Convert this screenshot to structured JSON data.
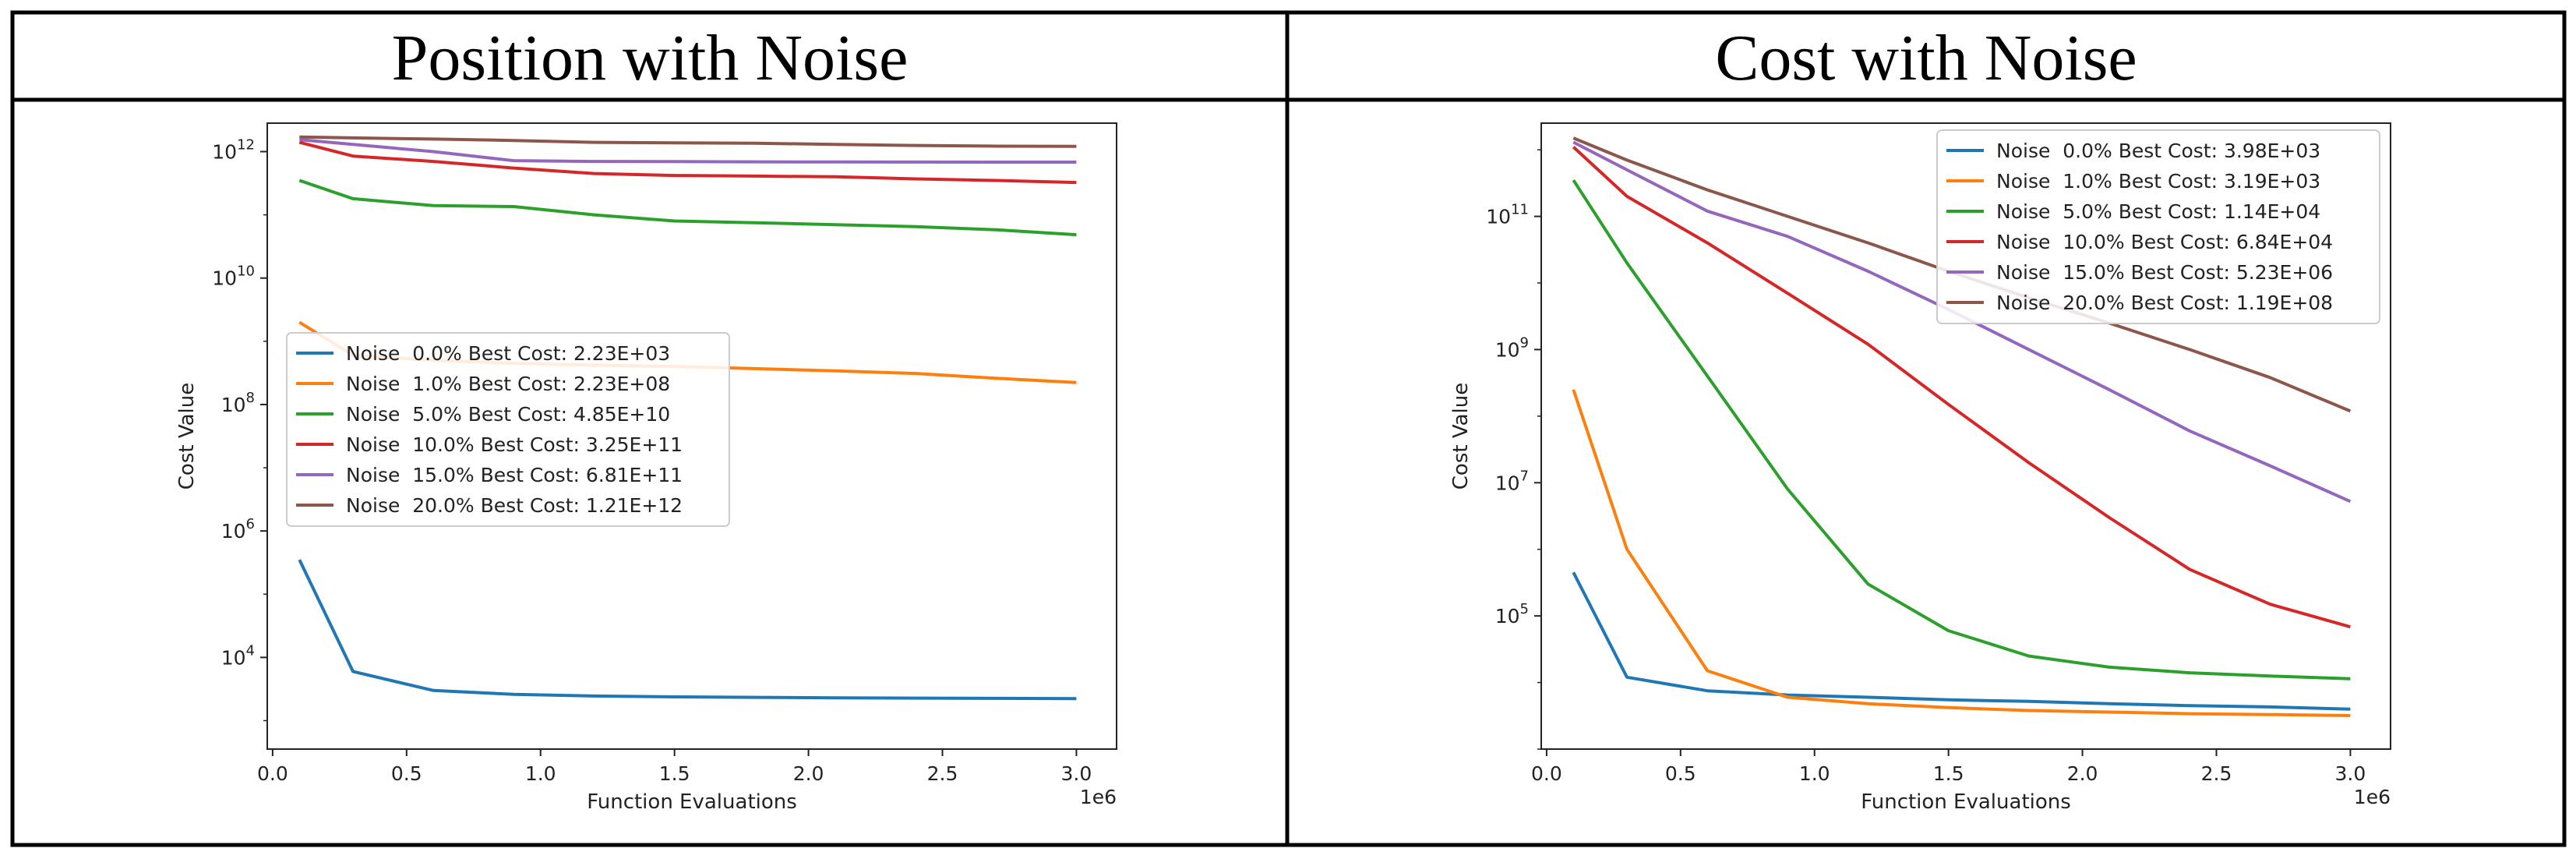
{
  "table": {
    "headers": [
      "Position with Noise",
      "Cost with Noise"
    ]
  },
  "chart_data": [
    {
      "type": "line",
      "title": "Position with Noise",
      "xlabel": "Function Evaluations",
      "ylabel": "Cost Value",
      "x_offset_label": "1e6",
      "yscale": "log",
      "xlim": [
        -0.02,
        3.15
      ],
      "ylim_exp": [
        2.55,
        12.45
      ],
      "xticks": [
        0.0,
        0.5,
        1.0,
        1.5,
        2.0,
        2.5,
        3.0
      ],
      "xtick_labels": [
        "0.0",
        "0.5",
        "1.0",
        "1.5",
        "2.0",
        "2.5",
        "3.0"
      ],
      "yticks_exp": [
        4,
        6,
        8,
        10,
        12
      ],
      "legend_position": "center-left",
      "x": [
        0.1,
        0.3,
        0.6,
        0.9,
        1.2,
        1.5,
        1.8,
        2.1,
        2.4,
        2.7,
        3.0
      ],
      "series": [
        {
          "name": "Noise  0.0% Best Cost: 2.23E+03",
          "color": "#1f77b4",
          "values": [
            350000,
            6000,
            3000,
            2600,
            2450,
            2380,
            2340,
            2300,
            2270,
            2250,
            2230
          ]
        },
        {
          "name": "Noise  1.0% Best Cost: 2.23E+08",
          "color": "#ff7f0e",
          "values": [
            2000000000.0,
            600000000.0,
            500000000.0,
            450000000.0,
            420000000.0,
            400000000.0,
            370000000.0,
            340000000.0,
            310000000.0,
            260000000.0,
            223000000.0
          ]
        },
        {
          "name": "Noise  5.0% Best Cost: 4.85E+10",
          "color": "#2ca02c",
          "values": [
            350000000000.0,
            180000000000.0,
            140000000000.0,
            135000000000.0,
            100000000000.0,
            80000000000.0,
            75000000000.0,
            70000000000.0,
            65000000000.0,
            58000000000.0,
            48500000000.0
          ]
        },
        {
          "name": "Noise  10.0% Best Cost: 3.25E+11",
          "color": "#d62728",
          "values": [
            1400000000000.0,
            850000000000.0,
            700000000000.0,
            550000000000.0,
            450000000000.0,
            420000000000.0,
            410000000000.0,
            400000000000.0,
            370000000000.0,
            350000000000.0,
            325000000000.0
          ]
        },
        {
          "name": "Noise  15.0% Best Cost: 6.81E+11",
          "color": "#9467bd",
          "values": [
            1550000000000.0,
            1300000000000.0,
            1000000000000.0,
            720000000000.0,
            700000000000.0,
            695000000000.0,
            690000000000.0,
            685000000000.0,
            683000000000.0,
            682000000000.0,
            681000000000.0
          ]
        },
        {
          "name": "Noise  20.0% Best Cost: 1.21E+12",
          "color": "#8c564b",
          "values": [
            1700000000000.0,
            1650000000000.0,
            1580000000000.0,
            1500000000000.0,
            1400000000000.0,
            1380000000000.0,
            1360000000000.0,
            1300000000000.0,
            1250000000000.0,
            1220000000000.0,
            1210000000000.0
          ]
        }
      ]
    },
    {
      "type": "line",
      "title": "Cost with Noise",
      "xlabel": "Function Evaluations",
      "ylabel": "Cost Value",
      "x_offset_label": "1e6",
      "yscale": "log",
      "xlim": [
        -0.02,
        3.15
      ],
      "ylim_exp": [
        3.0,
        12.4
      ],
      "xticks": [
        0.0,
        0.5,
        1.0,
        1.5,
        2.0,
        2.5,
        3.0
      ],
      "xtick_labels": [
        "0.0",
        "0.5",
        "1.0",
        "1.5",
        "2.0",
        "2.5",
        "3.0"
      ],
      "yticks_exp": [
        5,
        7,
        9,
        11
      ],
      "legend_position": "top-right",
      "x": [
        0.1,
        0.3,
        0.6,
        0.9,
        1.2,
        1.5,
        1.8,
        2.1,
        2.4,
        2.7,
        3.0
      ],
      "series": [
        {
          "name": "Noise  0.0% Best Cost: 3.98E+03",
          "color": "#1f77b4",
          "values": [
            450000,
            12000,
            7500,
            6500,
            6000,
            5500,
            5200,
            4800,
            4500,
            4300,
            3980
          ]
        },
        {
          "name": "Noise  1.0% Best Cost: 3.19E+03",
          "color": "#ff7f0e",
          "values": [
            250000000.0,
            1000000.0,
            15000,
            6000,
            4800,
            4200,
            3800,
            3600,
            3400,
            3300,
            3190
          ]
        },
        {
          "name": "Noise  5.0% Best Cost: 1.14E+04",
          "color": "#2ca02c",
          "values": [
            350000000000.0,
            20000000000.0,
            400000000.0,
            8000000.0,
            300000.0,
            60000,
            25000,
            17000,
            14000,
            12500,
            11400
          ]
        },
        {
          "name": "Noise  10.0% Best Cost: 6.84E+04",
          "color": "#d62728",
          "values": [
            1100000000000.0,
            200000000000.0,
            40000000000.0,
            7000000000.0,
            1200000000.0,
            150000000.0,
            20000000.0,
            3000000.0,
            500000.0,
            150000.0,
            68400
          ]
        },
        {
          "name": "Noise  15.0% Best Cost: 5.23E+06",
          "color": "#9467bd",
          "values": [
            1300000000000.0,
            500000000000.0,
            120000000000.0,
            50000000000.0,
            15000000000.0,
            4000000000.0,
            1000000000.0,
            250000000.0,
            60000000.0,
            18000000.0,
            5230000.0
          ]
        },
        {
          "name": "Noise  20.0% Best Cost: 1.19E+08",
          "color": "#8c564b",
          "values": [
            1500000000000.0,
            700000000000.0,
            250000000000.0,
            100000000000.0,
            40000000000.0,
            15000000000.0,
            6000000000.0,
            2500000000.0,
            1000000000.0,
            380000000.0,
            119000000.0
          ]
        }
      ]
    }
  ]
}
